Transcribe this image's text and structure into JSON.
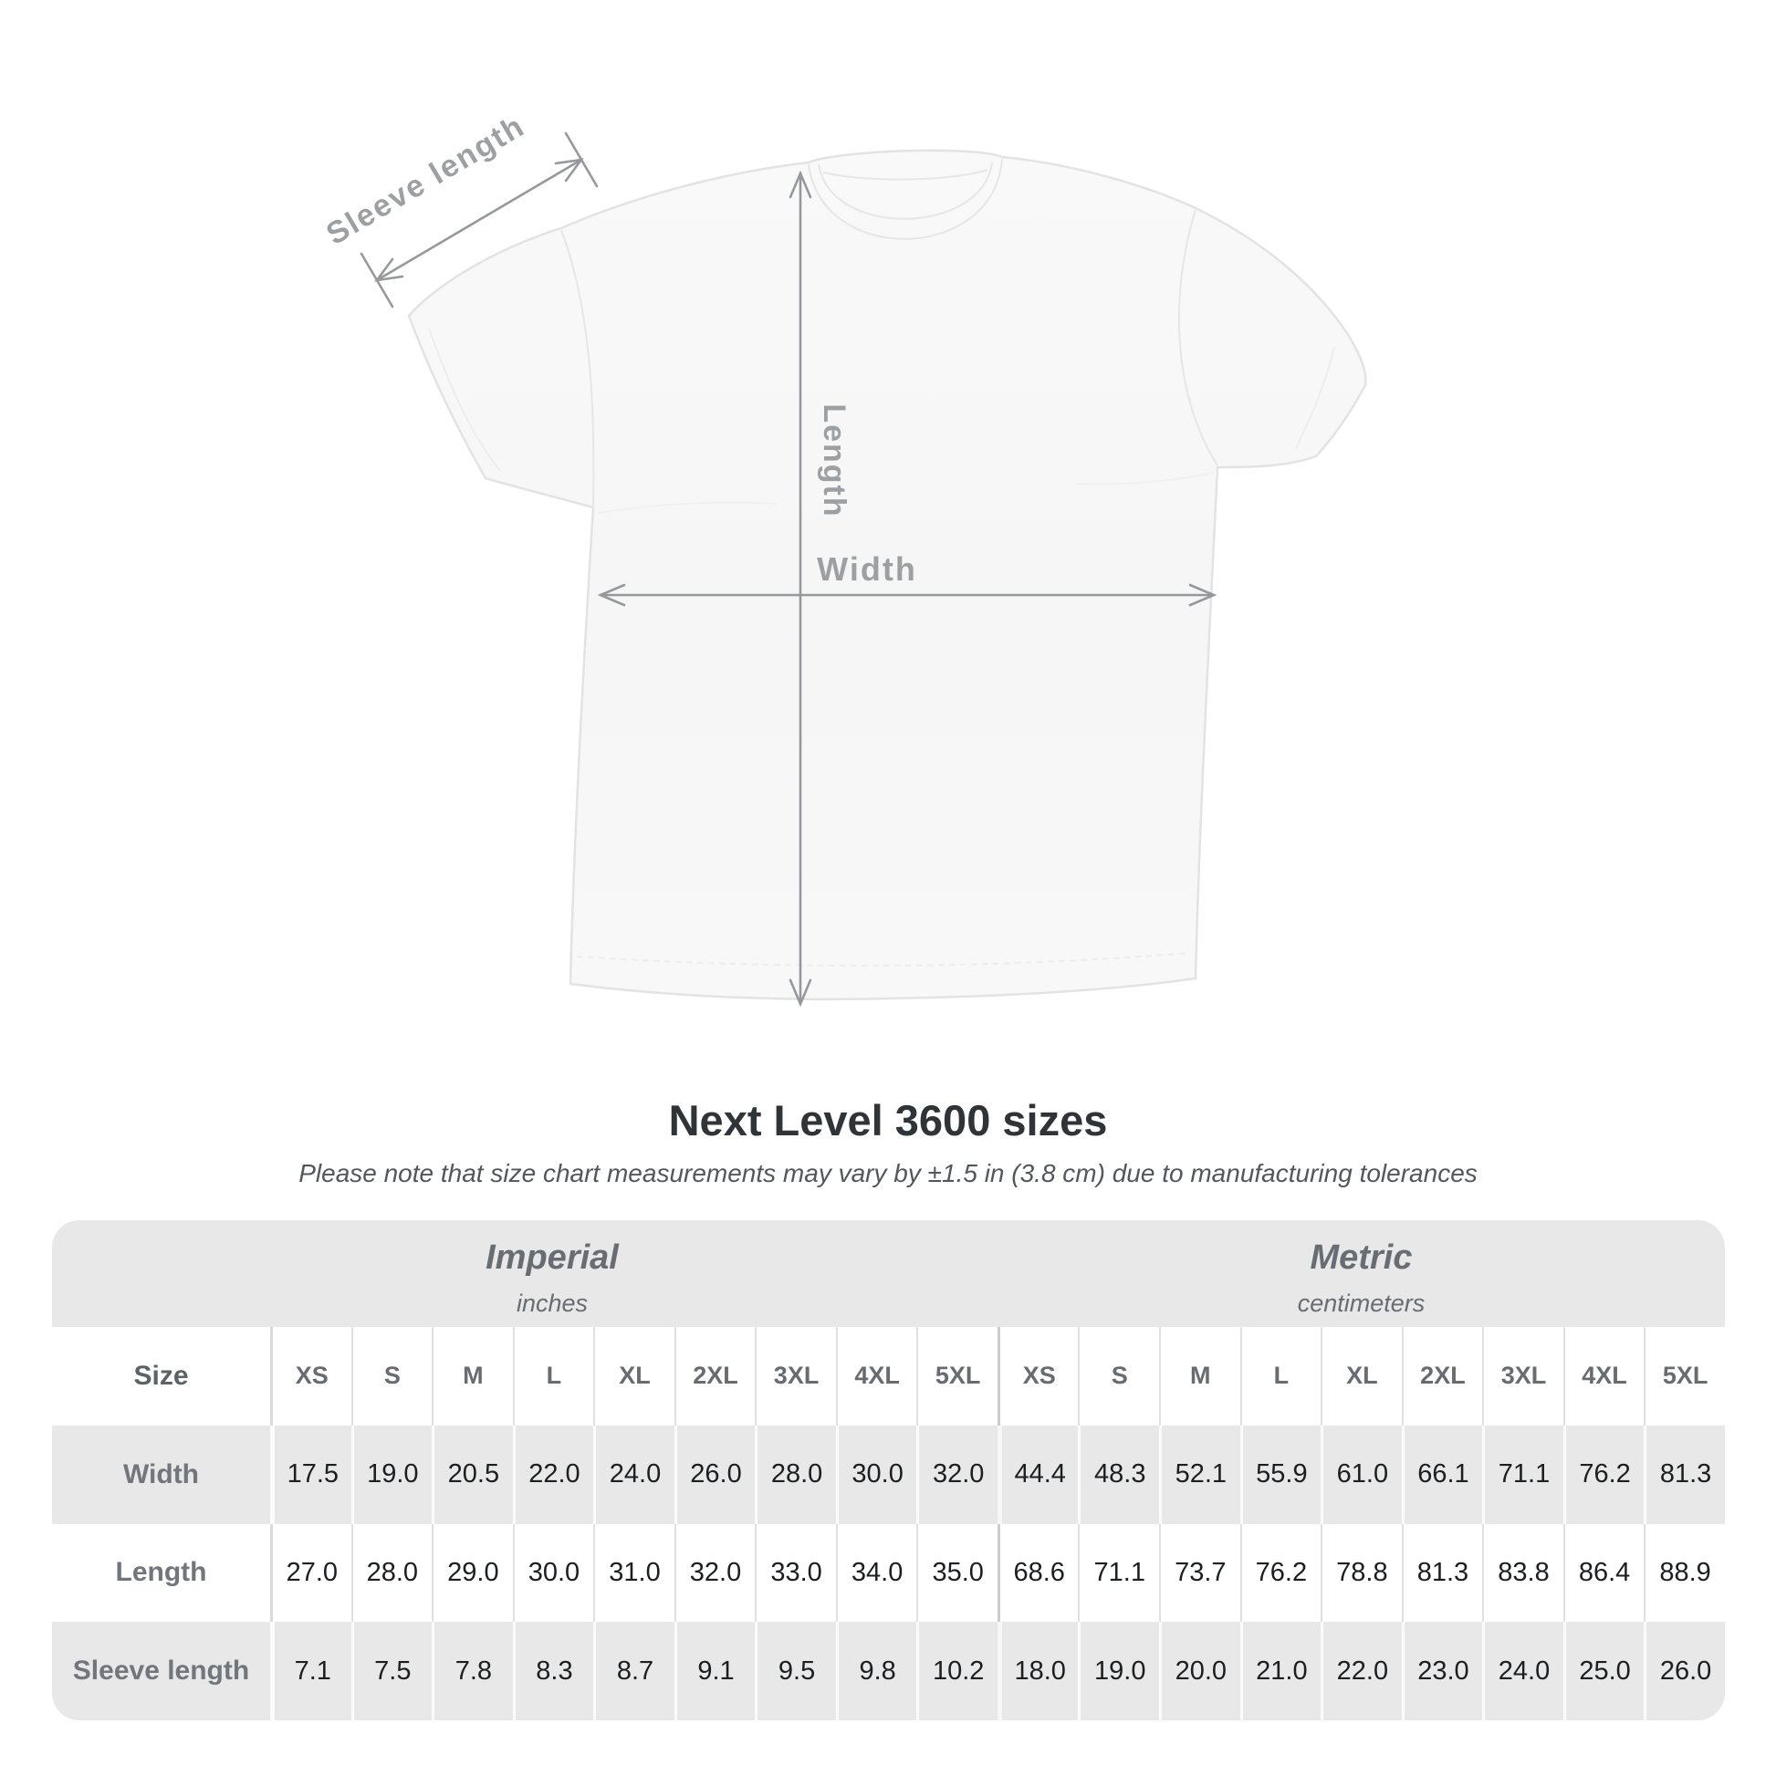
{
  "diagram": {
    "sleeve_length_label": "Sleeve length",
    "length_label": "Length",
    "width_label": "Width"
  },
  "title": "Next Level 3600 sizes",
  "subtitle": "Please note that size chart measurements may vary by ±1.5 in (3.8 cm) due to manufacturing tolerances",
  "table": {
    "imperial": {
      "title": "Imperial",
      "unit": "inches"
    },
    "metric": {
      "title": "Metric",
      "unit": "centimeters"
    },
    "size_label": "Size",
    "sizes": [
      "XS",
      "S",
      "M",
      "L",
      "XL",
      "2XL",
      "3XL",
      "4XL",
      "5XL"
    ],
    "rows": [
      {
        "label": "Width",
        "imperial": [
          "17.5",
          "19.0",
          "20.5",
          "22.0",
          "24.0",
          "26.0",
          "28.0",
          "30.0",
          "32.0"
        ],
        "metric": [
          "44.4",
          "48.3",
          "52.1",
          "55.9",
          "61.0",
          "66.1",
          "71.1",
          "76.2",
          "81.3"
        ]
      },
      {
        "label": "Length",
        "imperial": [
          "27.0",
          "28.0",
          "29.0",
          "30.0",
          "31.0",
          "32.0",
          "33.0",
          "34.0",
          "35.0"
        ],
        "metric": [
          "68.6",
          "71.1",
          "73.7",
          "76.2",
          "78.8",
          "81.3",
          "83.8",
          "86.4",
          "88.9"
        ]
      },
      {
        "label": "Sleeve length",
        "imperial": [
          "7.1",
          "7.5",
          "7.8",
          "8.3",
          "8.7",
          "9.1",
          "9.5",
          "9.8",
          "10.2"
        ],
        "metric": [
          "18.0",
          "19.0",
          "20.0",
          "21.0",
          "22.0",
          "23.0",
          "24.0",
          "25.0",
          "26.0"
        ]
      }
    ]
  },
  "colors": {
    "table_band_gray": "#e8e8e8",
    "annotation_gray": "#9da0a3",
    "value_text": "#1c1e20",
    "title_text": "#2f3439"
  }
}
